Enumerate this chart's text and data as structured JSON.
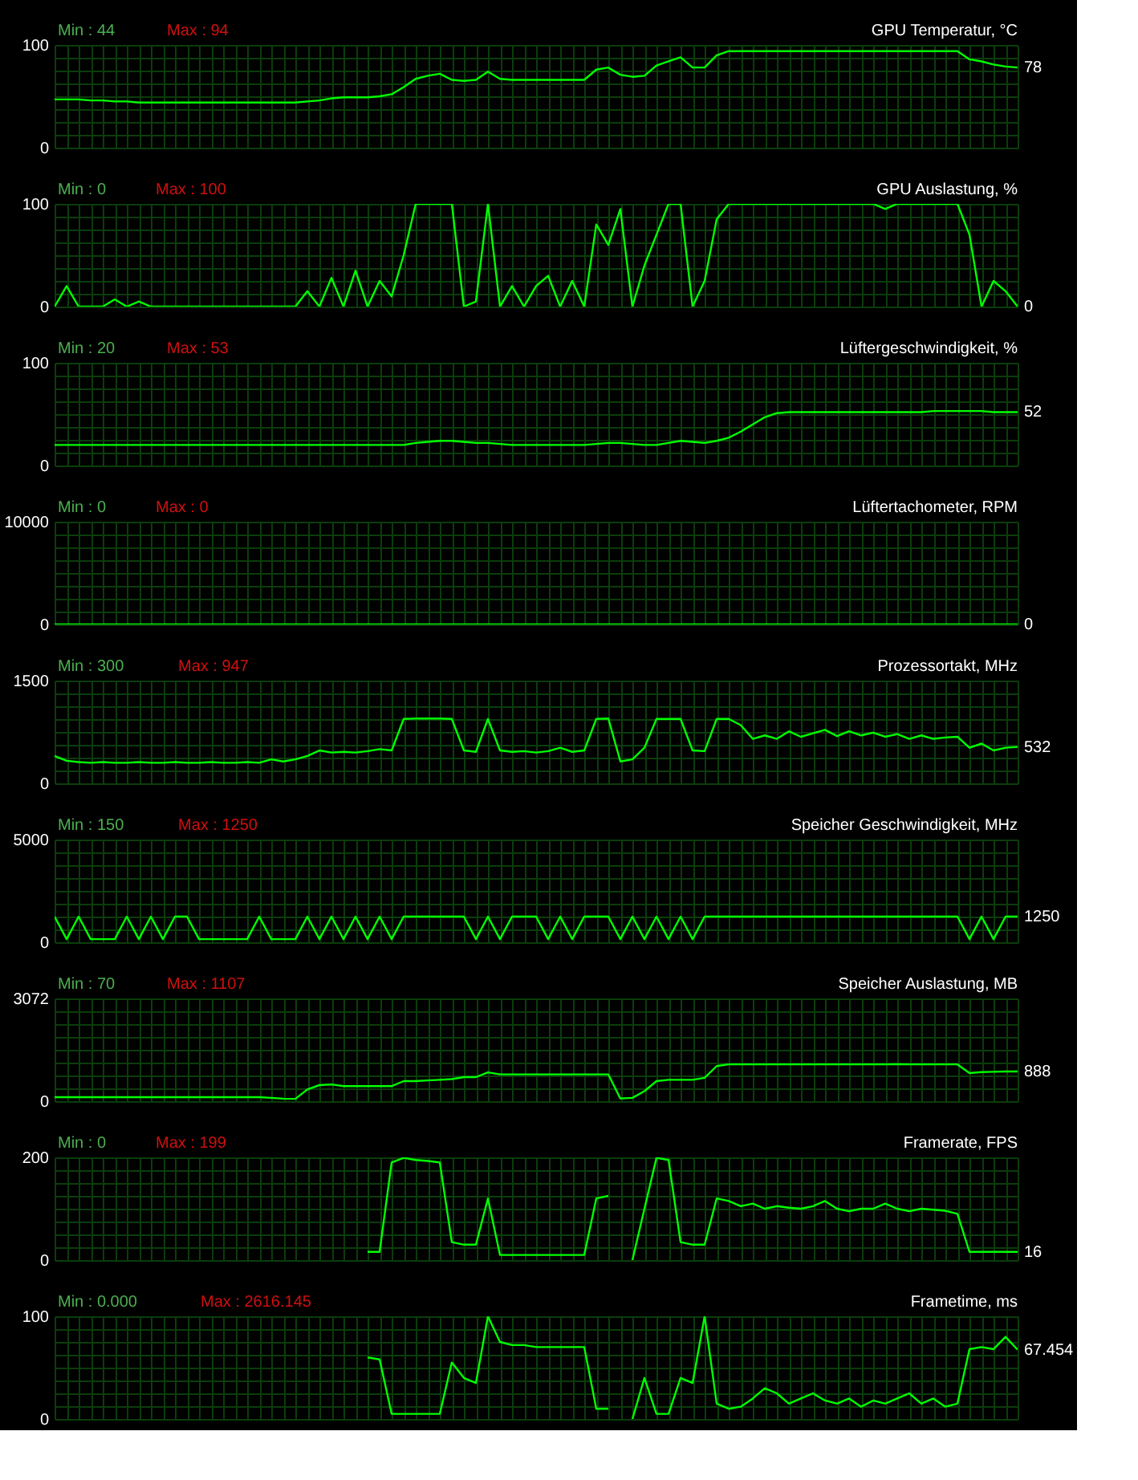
{
  "chart_data": [
    {
      "type": "line",
      "title": "GPU Temperatur, °C",
      "annotations": [
        "Min : 44",
        "Max : 94",
        "78"
      ],
      "grid": true,
      "ylim": [
        0,
        100
      ],
      "yticks": [
        0,
        {
          "value": 12.5,
          "label": null
        },
        {
          "value": 25,
          "label": null
        },
        {
          "value": 37.5,
          "label": null
        },
        {
          "value": 50,
          "label": null
        },
        {
          "value": 62.5,
          "label": null
        },
        {
          "value": 75,
          "label": null
        },
        {
          "value": 87.5,
          "label": null
        },
        100
      ],
      "categories": [
        null,
        null,
        null,
        null,
        null,
        null,
        null,
        null,
        null,
        null,
        null,
        null,
        null,
        null,
        null,
        null,
        null,
        null,
        null,
        null,
        null,
        null,
        null,
        null,
        null,
        null,
        null,
        null,
        null,
        null,
        null,
        null,
        null,
        null,
        null,
        null,
        null,
        null,
        null,
        null,
        null,
        null,
        null,
        null,
        null,
        null,
        null,
        null,
        null,
        null,
        null,
        null,
        null,
        null,
        null,
        null,
        null,
        null,
        null,
        null,
        null,
        null,
        null,
        null,
        null,
        null,
        null,
        null,
        null,
        null,
        null,
        null,
        null,
        null,
        null,
        null,
        null,
        null,
        null,
        null,
        null
      ],
      "series": [
        {
          "color": "#00ff00",
          "values": [
            47,
            47,
            47,
            46,
            46,
            45,
            45,
            44,
            44,
            44,
            44,
            44,
            44,
            44,
            44,
            44,
            44,
            44,
            44,
            44,
            44,
            45,
            46,
            48,
            49,
            49,
            49,
            50,
            52,
            59,
            67,
            70,
            72,
            66,
            65,
            66,
            74,
            67,
            66,
            66,
            66,
            66,
            66,
            66,
            66,
            76,
            78,
            71,
            69,
            70,
            80,
            84,
            88,
            78,
            78,
            90,
            94,
            94,
            94,
            94,
            94,
            94,
            94,
            94,
            94,
            94,
            94,
            94,
            94,
            94,
            94,
            94,
            94,
            94,
            94,
            94,
            86,
            84,
            81,
            79,
            78
          ]
        }
      ]
    },
    {
      "type": "line",
      "title": "GPU Auslastung, %",
      "annotations": [
        "Min : 0",
        "Max : 100",
        "0"
      ],
      "grid": true,
      "ylim": [
        0,
        100
      ],
      "yticks": [
        0,
        {
          "value": 12.5,
          "label": null
        },
        {
          "value": 25,
          "label": null
        },
        {
          "value": 37.5,
          "label": null
        },
        {
          "value": 50,
          "label": null
        },
        {
          "value": 62.5,
          "label": null
        },
        {
          "value": 75,
          "label": null
        },
        {
          "value": 87.5,
          "label": null
        },
        100
      ],
      "categories": [
        null,
        null,
        null,
        null,
        null,
        null,
        null,
        null,
        null,
        null,
        null,
        null,
        null,
        null,
        null,
        null,
        null,
        null,
        null,
        null,
        null,
        null,
        null,
        null,
        null,
        null,
        null,
        null,
        null,
        null,
        null,
        null,
        null,
        null,
        null,
        null,
        null,
        null,
        null,
        null,
        null,
        null,
        null,
        null,
        null,
        null,
        null,
        null,
        null,
        null,
        null,
        null,
        null,
        null,
        null,
        null,
        null,
        null,
        null,
        null,
        null,
        null,
        null,
        null,
        null,
        null,
        null,
        null,
        null,
        null,
        null,
        null,
        null,
        null,
        null,
        null,
        null,
        null,
        null,
        null,
        null
      ],
      "series": [
        {
          "color": "#00ff00",
          "values": [
            0,
            20,
            0,
            0,
            0,
            7,
            0,
            5,
            0,
            0,
            0,
            0,
            0,
            0,
            0,
            0,
            0,
            0,
            0,
            0,
            0,
            15,
            0,
            28,
            0,
            35,
            0,
            25,
            10,
            50,
            100,
            100,
            100,
            100,
            0,
            5,
            100,
            0,
            20,
            0,
            20,
            30,
            0,
            25,
            0,
            80,
            60,
            95,
            0,
            40,
            70,
            100,
            100,
            0,
            25,
            85,
            100,
            100,
            100,
            100,
            100,
            100,
            100,
            100,
            100,
            100,
            100,
            100,
            100,
            95,
            100,
            100,
            100,
            100,
            100,
            100,
            70,
            0,
            25,
            15,
            0
          ]
        }
      ]
    },
    {
      "type": "line",
      "title": "Lüftergeschwindigkeit, %",
      "annotations": [
        "Min : 20",
        "Max : 53",
        "52"
      ],
      "grid": true,
      "ylim": [
        0,
        100
      ],
      "yticks": [
        0,
        {
          "value": 12.5,
          "label": null
        },
        {
          "value": 25,
          "label": null
        },
        {
          "value": 37.5,
          "label": null
        },
        {
          "value": 50,
          "label": null
        },
        {
          "value": 62.5,
          "label": null
        },
        {
          "value": 75,
          "label": null
        },
        {
          "value": 87.5,
          "label": null
        },
        100
      ],
      "categories": [
        null,
        null,
        null,
        null,
        null,
        null,
        null,
        null,
        null,
        null,
        null,
        null,
        null,
        null,
        null,
        null,
        null,
        null,
        null,
        null,
        null,
        null,
        null,
        null,
        null,
        null,
        null,
        null,
        null,
        null,
        null,
        null,
        null,
        null,
        null,
        null,
        null,
        null,
        null,
        null,
        null,
        null,
        null,
        null,
        null,
        null,
        null,
        null,
        null,
        null,
        null,
        null,
        null,
        null,
        null,
        null,
        null,
        null,
        null,
        null,
        null,
        null,
        null,
        null,
        null,
        null,
        null,
        null,
        null,
        null,
        null,
        null,
        null,
        null,
        null,
        null,
        null,
        null,
        null,
        null,
        null
      ],
      "series": [
        {
          "color": "#00ff00",
          "values": [
            20,
            20,
            20,
            20,
            20,
            20,
            20,
            20,
            20,
            20,
            20,
            20,
            20,
            20,
            20,
            20,
            20,
            20,
            20,
            20,
            20,
            20,
            20,
            20,
            20,
            20,
            20,
            20,
            20,
            20,
            22,
            23,
            24,
            24,
            23,
            22,
            22,
            21,
            20,
            20,
            20,
            20,
            20,
            20,
            20,
            21,
            22,
            22,
            21,
            20,
            20,
            22,
            24,
            23,
            22,
            24,
            27,
            33,
            40,
            47,
            51,
            52,
            52,
            52,
            52,
            52,
            52,
            52,
            52,
            52,
            52,
            52,
            52,
            53,
            53,
            53,
            53,
            53,
            52,
            52,
            52
          ]
        }
      ]
    },
    {
      "type": "line",
      "title": "Lüftertachometer, RPM",
      "annotations": [
        "Min : 0",
        "Max : 0",
        "0"
      ],
      "grid": true,
      "ylim": [
        0,
        10000
      ],
      "yticks": [
        0,
        {
          "value": 1250,
          "label": null
        },
        {
          "value": 2500,
          "label": null
        },
        {
          "value": 3750,
          "label": null
        },
        {
          "value": 5000,
          "label": null
        },
        {
          "value": 6250,
          "label": null
        },
        {
          "value": 7500,
          "label": null
        },
        {
          "value": 8750,
          "label": null
        },
        10000
      ],
      "categories": [
        null,
        null,
        null,
        null,
        null,
        null,
        null,
        null,
        null,
        null,
        null,
        null,
        null,
        null,
        null,
        null,
        null,
        null,
        null,
        null,
        null,
        null,
        null,
        null,
        null,
        null,
        null,
        null,
        null,
        null,
        null,
        null,
        null,
        null,
        null,
        null,
        null,
        null,
        null,
        null,
        null,
        null,
        null,
        null,
        null,
        null,
        null,
        null,
        null,
        null,
        null,
        null,
        null,
        null,
        null,
        null,
        null,
        null,
        null,
        null,
        null,
        null,
        null,
        null,
        null,
        null,
        null,
        null,
        null,
        null,
        null,
        null,
        null,
        null,
        null,
        null,
        null,
        null,
        null,
        null,
        null
      ],
      "series": [
        {
          "color": "#00ff00",
          "values": [
            0,
            0,
            0,
            0,
            0,
            0,
            0,
            0,
            0,
            0,
            0,
            0,
            0,
            0,
            0,
            0,
            0,
            0,
            0,
            0,
            0,
            0,
            0,
            0,
            0,
            0,
            0,
            0,
            0,
            0,
            0,
            0,
            0,
            0,
            0,
            0,
            0,
            0,
            0,
            0,
            0,
            0,
            0,
            0,
            0,
            0,
            0,
            0,
            0,
            0,
            0,
            0,
            0,
            0,
            0,
            0,
            0,
            0,
            0,
            0,
            0,
            0,
            0,
            0,
            0,
            0,
            0,
            0,
            0,
            0,
            0,
            0,
            0,
            0,
            0,
            0,
            0,
            0,
            0,
            0,
            0
          ]
        }
      ]
    },
    {
      "type": "line",
      "title": "Prozessortakt, MHz",
      "annotations": [
        "Min : 300",
        "Max : 947",
        "532"
      ],
      "grid": true,
      "ylim": [
        0,
        1500
      ],
      "yticks": [
        0,
        {
          "value": 187.5,
          "label": null
        },
        {
          "value": 375,
          "label": null
        },
        {
          "value": 562.5,
          "label": null
        },
        {
          "value": 750,
          "label": null
        },
        {
          "value": 937.5,
          "label": null
        },
        {
          "value": 1125,
          "label": null
        },
        {
          "value": 1312.5,
          "label": null
        },
        1500
      ],
      "categories": [
        null,
        null,
        null,
        null,
        null,
        null,
        null,
        null,
        null,
        null,
        null,
        null,
        null,
        null,
        null,
        null,
        null,
        null,
        null,
        null,
        null,
        null,
        null,
        null,
        null,
        null,
        null,
        null,
        null,
        null,
        null,
        null,
        null,
        null,
        null,
        null,
        null,
        null,
        null,
        null,
        null,
        null,
        null,
        null,
        null,
        null,
        null,
        null,
        null,
        null,
        null,
        null,
        null,
        null,
        null,
        null,
        null,
        null,
        null,
        null,
        null,
        null,
        null,
        null,
        null,
        null,
        null,
        null,
        null,
        null,
        null,
        null,
        null,
        null,
        null,
        null,
        null,
        null,
        null,
        null,
        null
      ],
      "series": [
        {
          "color": "#00ff00",
          "values": [
            400,
            330,
            310,
            300,
            310,
            300,
            300,
            310,
            300,
            300,
            310,
            300,
            300,
            310,
            300,
            300,
            310,
            300,
            350,
            320,
            350,
            400,
            480,
            450,
            460,
            450,
            470,
            500,
            480,
            940,
            947,
            947,
            947,
            940,
            480,
            460,
            940,
            480,
            460,
            470,
            450,
            470,
            520,
            460,
            480,
            940,
            947,
            320,
            350,
            520,
            940,
            940,
            940,
            480,
            470,
            940,
            940,
            850,
            650,
            700,
            650,
            760,
            680,
            730,
            780,
            690,
            760,
            700,
            740,
            680,
            720,
            650,
            700,
            650,
            670,
            680,
            520,
            580,
            480,
            520,
            532
          ]
        }
      ]
    },
    {
      "type": "line",
      "title": "Speicher Geschwindigkeit, MHz",
      "annotations": [
        "Min : 150",
        "Max : 1250",
        "1250"
      ],
      "grid": true,
      "ylim": [
        0,
        5000
      ],
      "yticks": [
        0,
        {
          "value": 625,
          "label": null
        },
        {
          "value": 1250,
          "label": null
        },
        {
          "value": 1875,
          "label": null
        },
        {
          "value": 2500,
          "label": null
        },
        {
          "value": 3125,
          "label": null
        },
        {
          "value": 3750,
          "label": null
        },
        {
          "value": 4375,
          "label": null
        },
        5000
      ],
      "categories": [
        null,
        null,
        null,
        null,
        null,
        null,
        null,
        null,
        null,
        null,
        null,
        null,
        null,
        null,
        null,
        null,
        null,
        null,
        null,
        null,
        null,
        null,
        null,
        null,
        null,
        null,
        null,
        null,
        null,
        null,
        null,
        null,
        null,
        null,
        null,
        null,
        null,
        null,
        null,
        null,
        null,
        null,
        null,
        null,
        null,
        null,
        null,
        null,
        null,
        null,
        null,
        null,
        null,
        null,
        null,
        null,
        null,
        null,
        null,
        null,
        null,
        null,
        null,
        null,
        null,
        null,
        null,
        null,
        null,
        null,
        null,
        null,
        null,
        null,
        null,
        null,
        null,
        null,
        null,
        null,
        null
      ],
      "series": [
        {
          "color": "#00ff00",
          "values": [
            1250,
            150,
            1250,
            150,
            150,
            150,
            1250,
            150,
            1250,
            150,
            1250,
            1250,
            150,
            150,
            150,
            150,
            150,
            1250,
            150,
            150,
            150,
            1250,
            150,
            1250,
            150,
            1250,
            150,
            1250,
            150,
            1250,
            1250,
            1250,
            1250,
            1250,
            1250,
            150,
            1250,
            150,
            1250,
            1250,
            1250,
            150,
            1250,
            150,
            1250,
            1250,
            1250,
            150,
            1250,
            150,
            1250,
            150,
            1250,
            150,
            1250,
            1250,
            1250,
            1250,
            1250,
            1250,
            1250,
            1250,
            1250,
            1250,
            1250,
            1250,
            1250,
            1250,
            1250,
            1250,
            1250,
            1250,
            1250,
            1250,
            1250,
            1250,
            150,
            1250,
            150,
            1250,
            1250
          ]
        }
      ]
    },
    {
      "type": "line",
      "title": "Speicher Auslastung, MB",
      "annotations": [
        "Min : 70",
        "Max : 1107",
        "888"
      ],
      "grid": true,
      "ylim": [
        0,
        3072
      ],
      "yticks": [
        0,
        {
          "value": 384,
          "label": null
        },
        {
          "value": 768,
          "label": null
        },
        {
          "value": 1152,
          "label": null
        },
        {
          "value": 1536,
          "label": null
        },
        {
          "value": 1920,
          "label": null
        },
        {
          "value": 2304,
          "label": null
        },
        {
          "value": 2688,
          "label": null
        },
        3072
      ],
      "categories": [
        null,
        null,
        null,
        null,
        null,
        null,
        null,
        null,
        null,
        null,
        null,
        null,
        null,
        null,
        null,
        null,
        null,
        null,
        null,
        null,
        null,
        null,
        null,
        null,
        null,
        null,
        null,
        null,
        null,
        null,
        null,
        null,
        null,
        null,
        null,
        null,
        null,
        null,
        null,
        null,
        null,
        null,
        null,
        null,
        null,
        null,
        null,
        null,
        null,
        null,
        null,
        null,
        null,
        null,
        null,
        null,
        null,
        null,
        null,
        null,
        null,
        null,
        null,
        null,
        null,
        null,
        null,
        null,
        null,
        null,
        null,
        null,
        null,
        null,
        null,
        null,
        null,
        null,
        null,
        null,
        null
      ],
      "series": [
        {
          "color": "#00ff00",
          "values": [
            120,
            120,
            120,
            120,
            120,
            120,
            120,
            120,
            120,
            120,
            120,
            120,
            120,
            120,
            120,
            120,
            120,
            120,
            100,
            75,
            70,
            350,
            480,
            500,
            450,
            450,
            450,
            450,
            450,
            600,
            600,
            620,
            640,
            660,
            720,
            720,
            860,
            800,
            800,
            800,
            800,
            800,
            800,
            800,
            800,
            800,
            800,
            80,
            100,
            300,
            600,
            640,
            640,
            640,
            700,
            1050,
            1100,
            1100,
            1100,
            1100,
            1100,
            1100,
            1100,
            1100,
            1100,
            1100,
            1100,
            1100,
            1100,
            1100,
            1107,
            1100,
            1100,
            1100,
            1100,
            1100,
            840,
            870,
            880,
            888,
            888
          ]
        }
      ]
    },
    {
      "type": "line",
      "title": "Framerate, FPS",
      "annotations": [
        "Min : 0",
        "Max : 199",
        "16"
      ],
      "grid": true,
      "ylim": [
        0,
        200
      ],
      "yticks": [
        0,
        {
          "value": 25,
          "label": null
        },
        {
          "value": 50,
          "label": null
        },
        {
          "value": 75,
          "label": null
        },
        {
          "value": 100,
          "label": null
        },
        {
          "value": 125,
          "label": null
        },
        {
          "value": 150,
          "label": null
        },
        {
          "value": 175,
          "label": null
        },
        200
      ],
      "categories": [
        null,
        null,
        null,
        null,
        null,
        null,
        null,
        null,
        null,
        null,
        null,
        null,
        null,
        null,
        null,
        null,
        null,
        null,
        null,
        null,
        null,
        null,
        null,
        null,
        null,
        null,
        null,
        null,
        null,
        null,
        null,
        null,
        null,
        null,
        null,
        null,
        null,
        null,
        null,
        null,
        null,
        null,
        null,
        null,
        null,
        null,
        null,
        null,
        null,
        null,
        null,
        null,
        null,
        null,
        null,
        null,
        null,
        null,
        null,
        null,
        null,
        null,
        null,
        null,
        null,
        null,
        null,
        null,
        null,
        null,
        null,
        null,
        null,
        null,
        null,
        null,
        null,
        null,
        null,
        null,
        null
      ],
      "series": [
        {
          "color": "#00ff00",
          "values": [
            null,
            null,
            null,
            null,
            null,
            null,
            null,
            null,
            null,
            null,
            null,
            null,
            null,
            null,
            null,
            null,
            null,
            null,
            null,
            null,
            null,
            null,
            null,
            null,
            null,
            null,
            16,
            16,
            190,
            199,
            195,
            193,
            190,
            35,
            30,
            30,
            120,
            10,
            10,
            10,
            10,
            10,
            10,
            10,
            10,
            120,
            125,
            null,
            0,
            100,
            199,
            195,
            35,
            30,
            30,
            120,
            115,
            105,
            110,
            100,
            105,
            102,
            100,
            105,
            115,
            100,
            95,
            100,
            100,
            110,
            100,
            95,
            100,
            98,
            96,
            90,
            16,
            16,
            16,
            16,
            16
          ]
        }
      ]
    },
    {
      "type": "line",
      "title": "Frametime, ms",
      "annotations": [
        "Min : 0.000",
        "Max : 2616.145",
        "67.454"
      ],
      "grid": true,
      "ylim": [
        0,
        100
      ],
      "yticks": [
        0,
        {
          "value": 12.5,
          "label": null
        },
        {
          "value": 25,
          "label": null
        },
        {
          "value": 37.5,
          "label": null
        },
        {
          "value": 50,
          "label": null
        },
        {
          "value": 62.5,
          "label": null
        },
        {
          "value": 75,
          "label": null
        },
        {
          "value": 87.5,
          "label": null
        },
        100
      ],
      "categories": [
        null,
        null,
        null,
        null,
        null,
        null,
        null,
        null,
        null,
        null,
        null,
        null,
        null,
        null,
        null,
        null,
        null,
        null,
        null,
        null,
        null,
        null,
        null,
        null,
        null,
        null,
        null,
        null,
        null,
        null,
        null,
        null,
        null,
        null,
        null,
        null,
        null,
        null,
        null,
        null,
        null,
        null,
        null,
        null,
        null,
        null,
        null,
        null,
        null,
        null,
        null,
        null,
        null,
        null,
        null,
        null,
        null,
        null,
        null,
        null,
        null,
        null,
        null,
        null,
        null,
        null,
        null,
        null,
        null,
        null,
        null,
        null,
        null,
        null,
        null,
        null,
        null,
        null,
        null,
        null,
        null
      ],
      "series": [
        {
          "color": "#00ff00",
          "values": [
            null,
            null,
            null,
            null,
            null,
            null,
            null,
            null,
            null,
            null,
            null,
            null,
            null,
            null,
            null,
            null,
            null,
            null,
            null,
            null,
            null,
            null,
            null,
            null,
            null,
            null,
            60,
            58,
            5,
            5,
            5,
            5,
            5,
            55,
            40,
            35,
            100,
            75,
            72,
            72,
            70,
            70,
            70,
            70,
            70,
            10,
            10,
            null,
            0,
            40,
            5,
            5,
            40,
            35,
            100,
            15,
            10,
            12,
            20,
            30,
            25,
            15,
            20,
            25,
            18,
            15,
            20,
            12,
            18,
            15,
            20,
            25,
            15,
            20,
            12,
            15,
            68,
            70,
            68,
            80,
            67.454
          ]
        }
      ]
    }
  ]
}
